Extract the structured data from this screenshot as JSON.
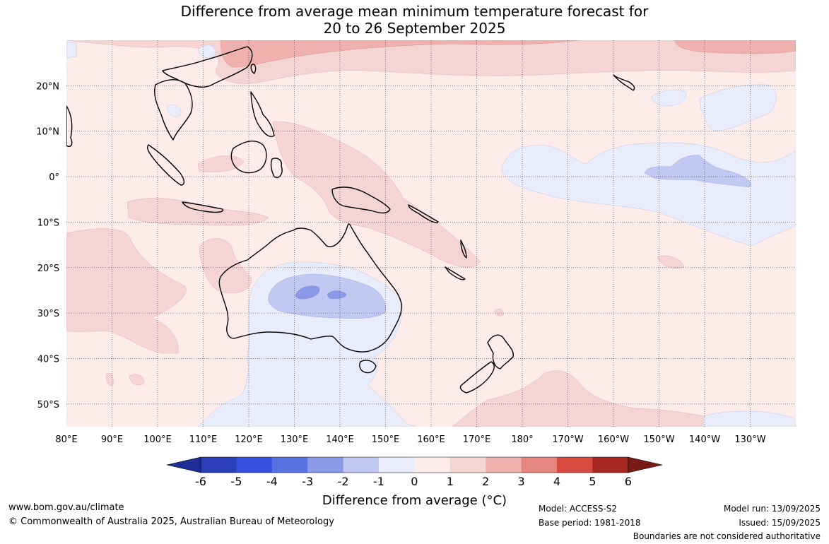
{
  "title": {
    "line1": "Difference from average mean minimum temperature forecast for",
    "line2": "20 to 26 September 2025"
  },
  "map": {
    "lon_labels": [
      "80°E",
      "90°E",
      "100°E",
      "110°E",
      "120°E",
      "130°E",
      "140°E",
      "150°E",
      "160°E",
      "170°E",
      "180°",
      "170°W",
      "160°W",
      "150°W",
      "140°W",
      "130°W"
    ],
    "lat_labels": [
      "20°N",
      "10°N",
      "0°",
      "10°S",
      "20°S",
      "30°S",
      "40°S",
      "50°S"
    ],
    "extent": {
      "lon_min": 80,
      "lon_max": 240,
      "lat_min": -55,
      "lat_max": 30
    },
    "colors": {
      "cold_minus1": "#e8ecfb",
      "cold_minus2": "#c1c9f2",
      "cold_minus3": "#8a9ae6",
      "warm_plus1": "#fdecea",
      "warm_plus2": "#f5d5d3",
      "warm_plus3": "#eeb1ad"
    }
  },
  "colorbar": {
    "ticks": [
      "-6",
      "-5",
      "-4",
      "-3",
      "-2",
      "-1",
      "0",
      "1",
      "2",
      "3",
      "4",
      "5",
      "6"
    ],
    "colors": [
      "#1c2d94",
      "#2a3eb8",
      "#3550dc",
      "#5a71e2",
      "#8a9ae6",
      "#c1c9f2",
      "#e8ecfb",
      "#fdecea",
      "#f5d5d3",
      "#eeb1ad",
      "#e6877f",
      "#d84a3f",
      "#a82a22",
      "#7a1a14"
    ],
    "label": "Difference from average (°C)"
  },
  "footer": {
    "website": "www.bom.gov.au/climate",
    "copyright": "© Commonwealth of Australia 2025, Australian Bureau of Meteorology",
    "model": "Model: ACCESS-S2",
    "base_period": "Base period: 1981-2018",
    "model_run": "Model run: 13/09/2025",
    "issued": "Issued: 15/09/2025",
    "disclaimer": "Boundaries are not considered authoritative"
  }
}
